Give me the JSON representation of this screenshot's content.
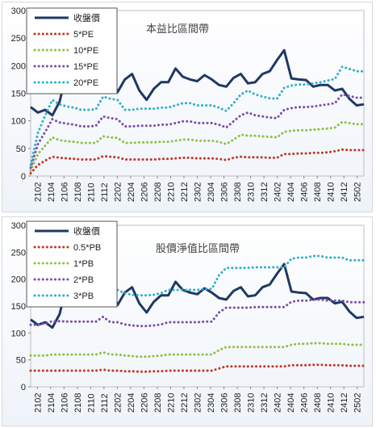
{
  "chart_data": [
    {
      "type": "line",
      "title": "本益比區間帶",
      "ylim": [
        0,
        300
      ],
      "yticks": [
        0,
        50,
        100,
        150,
        200,
        250,
        300
      ],
      "x_labels": [
        "2102",
        "2104",
        "2106",
        "2108",
        "2110",
        "2112",
        "2202",
        "2204",
        "2206",
        "2208",
        "2210",
        "2212",
        "2302",
        "2304",
        "2306",
        "2308",
        "2310",
        "2312",
        "2402",
        "2404",
        "2406",
        "2408",
        "2410",
        "2412",
        "2502"
      ],
      "legend_position": "top-left",
      "series": [
        {
          "name": "收盤價",
          "color": "#1f3864",
          "style": "solid",
          "values": [
            125,
            115,
            120,
            110,
            135,
            190,
            205,
            215,
            230,
            237,
            160,
            185,
            152,
            175,
            185,
            155,
            138,
            158,
            170,
            170,
            195,
            180,
            175,
            172,
            183,
            175,
            165,
            162,
            178,
            185,
            168,
            170,
            185,
            190,
            210,
            228,
            177,
            175,
            174,
            162,
            165,
            165,
            155,
            158,
            140,
            128,
            130
          ]
        },
        {
          "name": "5*PE",
          "color": "#c0392b",
          "style": "dotted",
          "values": [
            5,
            20,
            28,
            35,
            33,
            32,
            31,
            30,
            30,
            30,
            36,
            35,
            34,
            30,
            30,
            30,
            30,
            30,
            31,
            31,
            32,
            33,
            33,
            32,
            32,
            32,
            31,
            29,
            33,
            35,
            34,
            34,
            34,
            33,
            33,
            40,
            40,
            41,
            41,
            42,
            42,
            43,
            45,
            48,
            47,
            47,
            47
          ]
        },
        {
          "name": "10*PE",
          "color": "#92c045",
          "style": "dotted",
          "values": [
            10,
            40,
            55,
            70,
            65,
            63,
            62,
            60,
            60,
            60,
            72,
            70,
            69,
            60,
            60,
            61,
            61,
            61,
            62,
            62,
            64,
            66,
            66,
            64,
            64,
            64,
            62,
            58,
            66,
            75,
            73,
            73,
            72,
            71,
            70,
            80,
            82,
            83,
            83,
            84,
            85,
            86,
            88,
            98,
            96,
            94,
            94
          ]
        },
        {
          "name": "15*PE",
          "color": "#7b4fa6",
          "style": "dotted",
          "values": [
            15,
            58,
            80,
            103,
            97,
            95,
            93,
            90,
            90,
            91,
            108,
            105,
            103,
            90,
            90,
            91,
            91,
            91,
            93,
            93,
            96,
            99,
            99,
            96,
            96,
            96,
            93,
            88,
            99,
            110,
            115,
            110,
            108,
            106,
            105,
            120,
            123,
            125,
            125,
            126,
            128,
            130,
            132,
            148,
            145,
            142,
            142
          ]
        },
        {
          "name": "20*PE",
          "color": "#31b0c8",
          "style": "dotted",
          "values": [
            20,
            78,
            110,
            138,
            130,
            126,
            124,
            120,
            120,
            121,
            144,
            140,
            138,
            120,
            120,
            122,
            122,
            122,
            124,
            124,
            128,
            132,
            132,
            128,
            128,
            128,
            124,
            118,
            132,
            148,
            155,
            148,
            144,
            141,
            140,
            160,
            164,
            166,
            166,
            168,
            170,
            173,
            176,
            198,
            194,
            190,
            190
          ]
        }
      ]
    },
    {
      "type": "line",
      "title": "股價淨值比區間帶",
      "ylim": [
        0,
        300
      ],
      "yticks": [
        0,
        50,
        100,
        150,
        200,
        250,
        300
      ],
      "x_labels": [
        "2102",
        "2104",
        "2106",
        "2108",
        "2110",
        "2112",
        "2202",
        "2204",
        "2206",
        "2208",
        "2210",
        "2212",
        "2302",
        "2304",
        "2306",
        "2308",
        "2310",
        "2312",
        "2402",
        "2404",
        "2406",
        "2408",
        "2410",
        "2412",
        "2502"
      ],
      "legend_position": "top-left",
      "series": [
        {
          "name": "收盤價",
          "color": "#1f3864",
          "style": "solid",
          "values": [
            125,
            115,
            120,
            110,
            135,
            190,
            205,
            215,
            230,
            237,
            160,
            185,
            152,
            175,
            185,
            155,
            138,
            158,
            170,
            170,
            195,
            180,
            175,
            172,
            183,
            175,
            165,
            162,
            178,
            185,
            168,
            170,
            185,
            190,
            210,
            228,
            177,
            175,
            174,
            162,
            165,
            165,
            155,
            158,
            140,
            128,
            130
          ]
        },
        {
          "name": "0.5*PB",
          "color": "#c0392b",
          "style": "dotted",
          "values": [
            30,
            30,
            30,
            30,
            30,
            30,
            30,
            30,
            30,
            30,
            32,
            30,
            30,
            29,
            29,
            28,
            28,
            29,
            29,
            30,
            30,
            30,
            30,
            30,
            30,
            30,
            34,
            38,
            38,
            38,
            38,
            38,
            38,
            38,
            38,
            38,
            40,
            40,
            40,
            41,
            41,
            40,
            40,
            40,
            39,
            39,
            39
          ]
        },
        {
          "name": "1*PB",
          "color": "#92c045",
          "style": "dotted",
          "values": [
            58,
            58,
            58,
            60,
            60,
            60,
            60,
            60,
            60,
            60,
            64,
            60,
            60,
            58,
            57,
            56,
            56,
            57,
            58,
            60,
            60,
            60,
            60,
            60,
            60,
            60,
            68,
            74,
            74,
            74,
            74,
            74,
            74,
            74,
            74,
            74,
            78,
            80,
            80,
            81,
            81,
            80,
            80,
            80,
            78,
            78,
            78
          ]
        },
        {
          "name": "2*PB",
          "color": "#7b4fa6",
          "style": "dotted",
          "values": [
            115,
            115,
            118,
            122,
            122,
            121,
            121,
            121,
            121,
            121,
            130,
            120,
            120,
            116,
            114,
            113,
            113,
            114,
            116,
            120,
            120,
            120,
            120,
            120,
            121,
            121,
            138,
            147,
            147,
            147,
            147,
            148,
            148,
            148,
            148,
            148,
            158,
            160,
            160,
            162,
            162,
            160,
            160,
            160,
            157,
            157,
            157
          ]
        },
        {
          "name": "3*PB",
          "color": "#31b0c8",
          "style": "dotted",
          "values": [
            172,
            172,
            178,
            183,
            183,
            182,
            182,
            182,
            182,
            182,
            195,
            180,
            180,
            174,
            171,
            170,
            170,
            171,
            174,
            180,
            180,
            180,
            180,
            180,
            182,
            182,
            207,
            221,
            221,
            221,
            221,
            222,
            222,
            222,
            222,
            222,
            238,
            240,
            240,
            243,
            243,
            240,
            240,
            240,
            235,
            235,
            235
          ]
        }
      ]
    }
  ]
}
